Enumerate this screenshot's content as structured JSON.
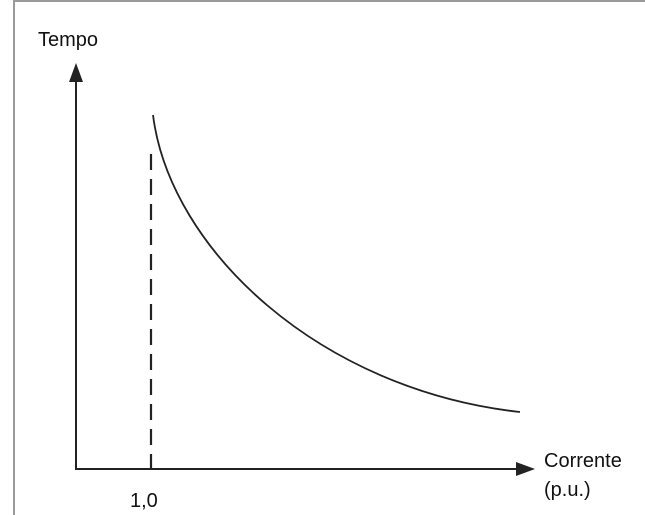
{
  "chart_data": {
    "type": "line",
    "ylabel": "Tempo",
    "xlabel_line1": "Corrente",
    "xlabel_line2": "(p.u.)",
    "tick_label": "1,0",
    "colors": {
      "line": "#222222",
      "frame": "#9a9a9a"
    },
    "grid": false,
    "legend": "none"
  }
}
